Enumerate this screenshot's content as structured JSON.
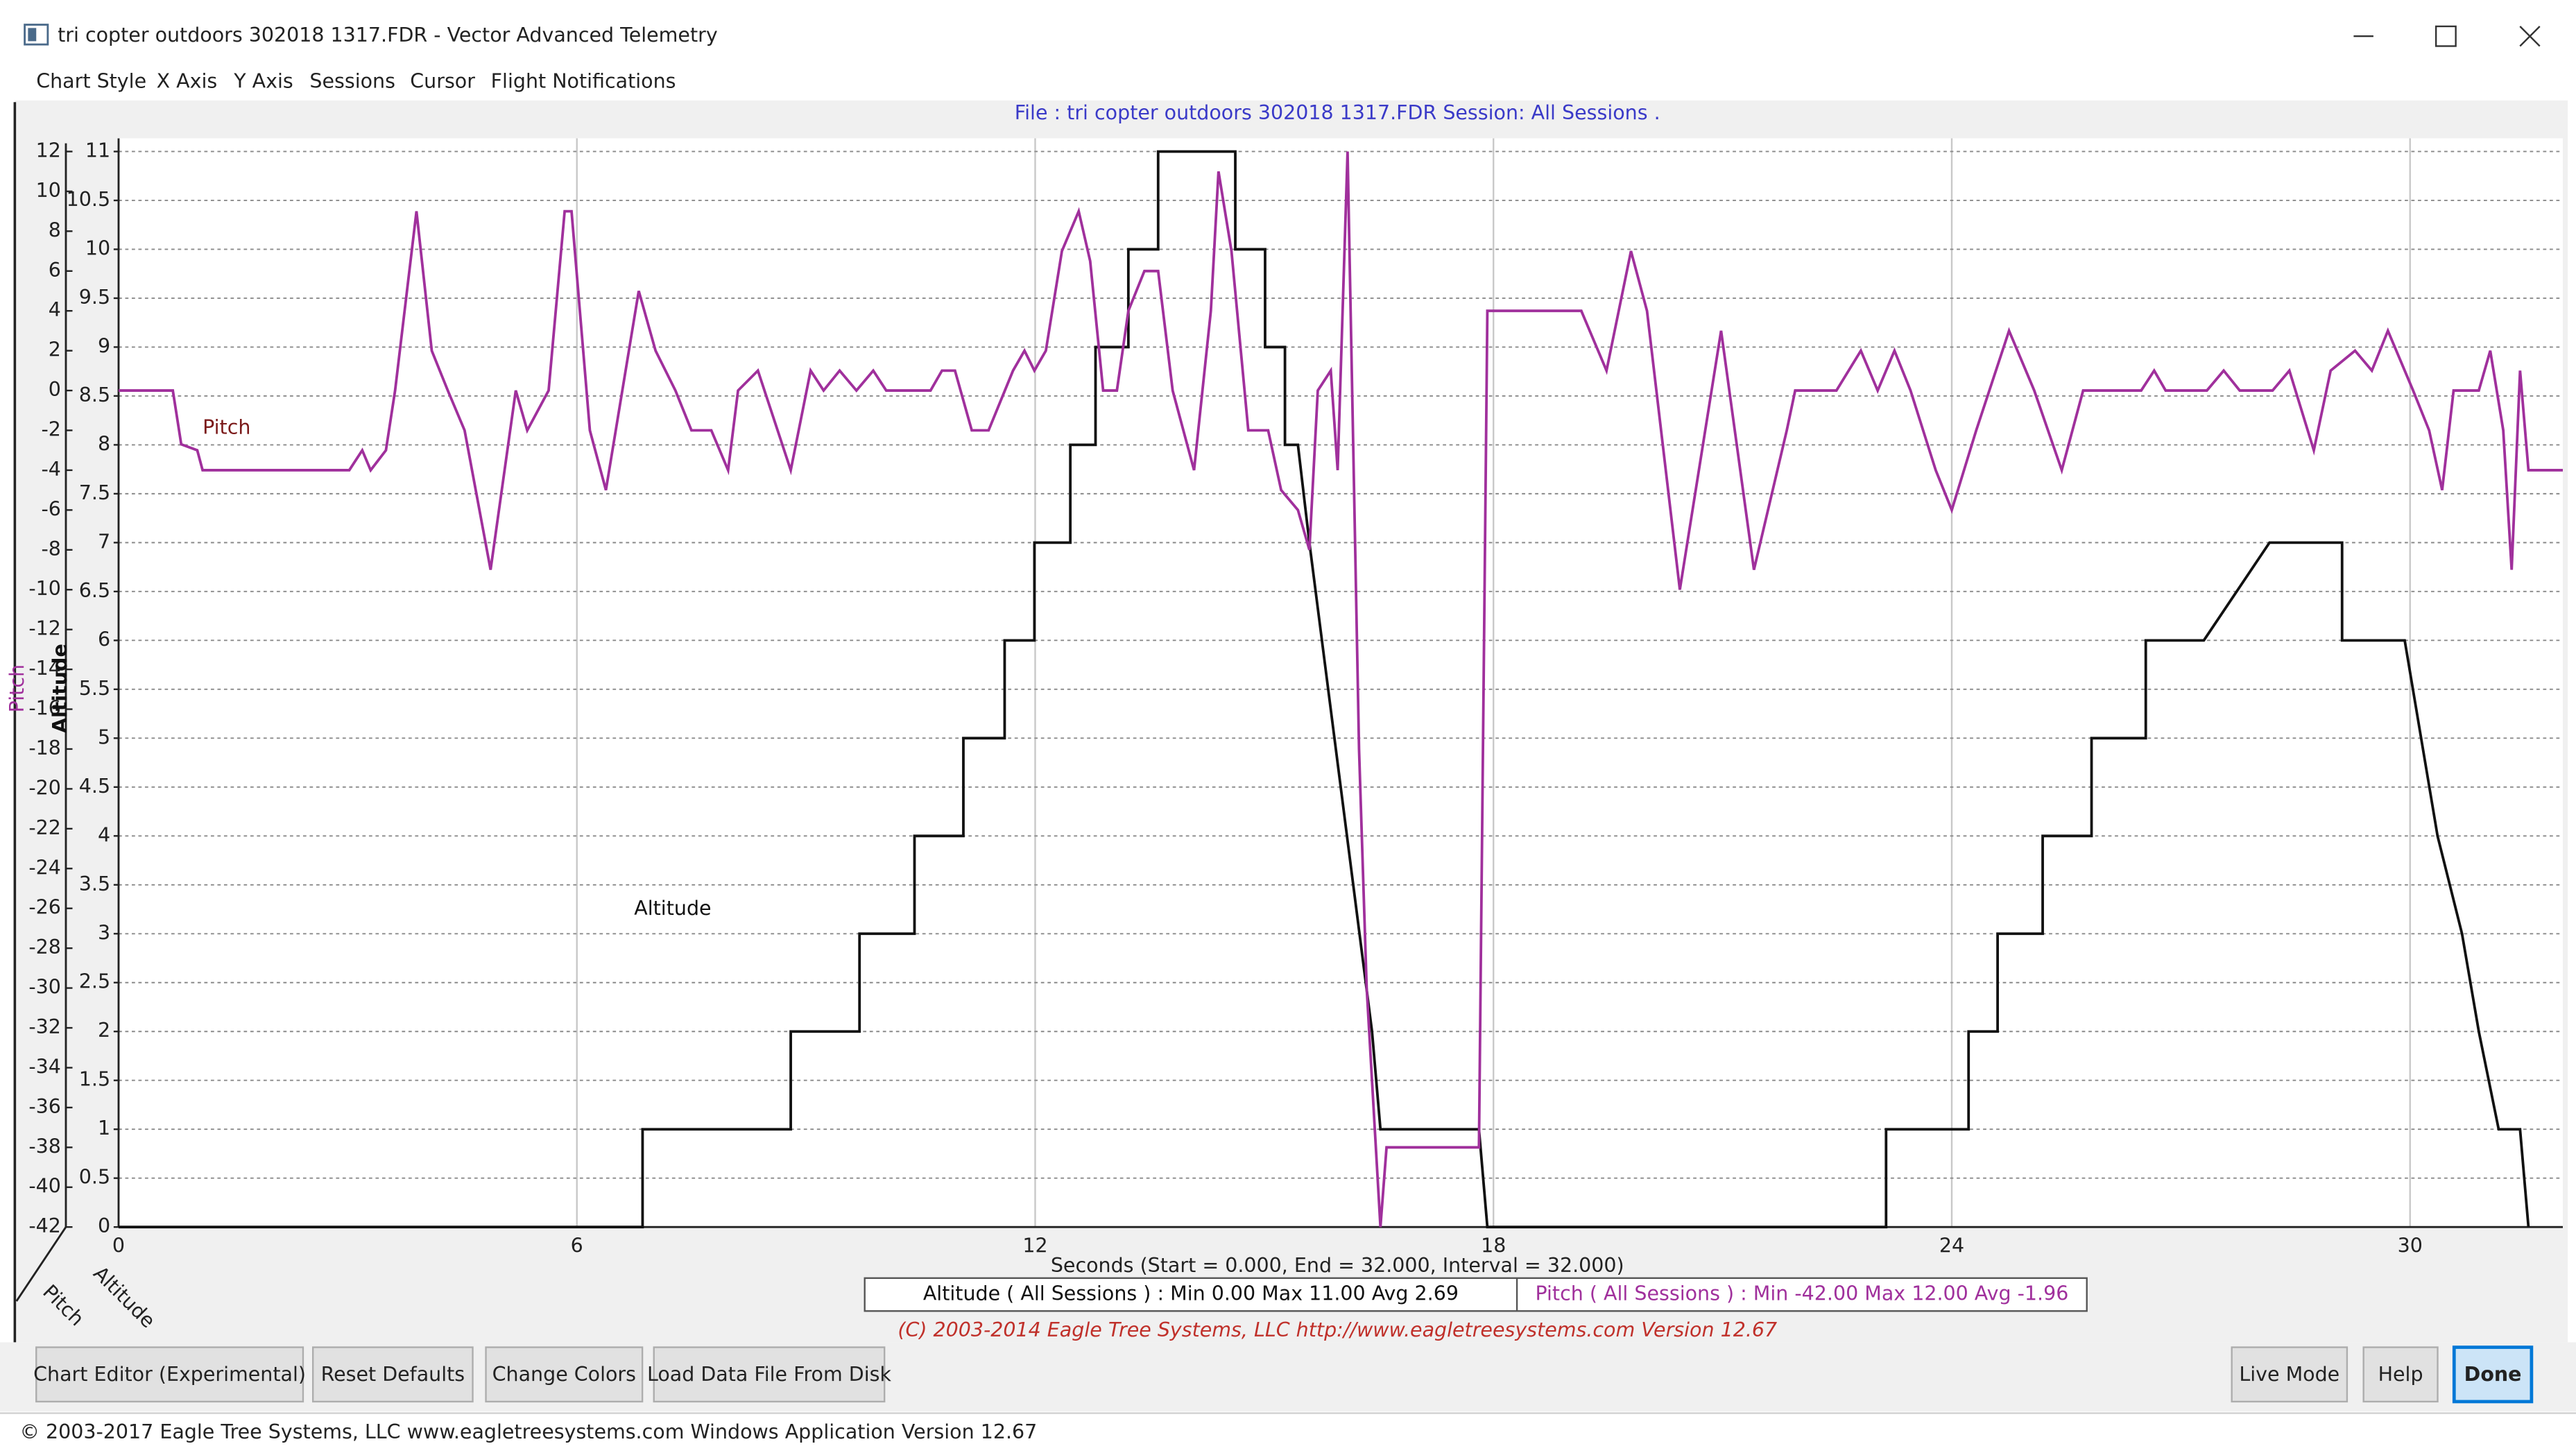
{
  "window": {
    "title": "tri copter outdoors 302018 1317.FDR - Vector Advanced Telemetry"
  },
  "menu": [
    "Chart Style",
    "X Axis",
    "Y Axis",
    "Sessions",
    "Cursor",
    "Flight Notifications"
  ],
  "chart_data": {
    "type": "line",
    "title": "File : tri copter outdoors 302018 1317.FDR   Session: All Sessions .",
    "xlabel": "Seconds (Start = 0.000,  End = 32.000,  Interval =  32.000)",
    "ylabel": "Pitch",
    "y2label": "Altitude",
    "xlim": [
      0,
      32
    ],
    "xticks": [
      0,
      6,
      12,
      18,
      24,
      30
    ],
    "ylim": [
      -42,
      12
    ],
    "yticks": [
      -42,
      -40,
      -38,
      -36,
      -34,
      -32,
      -30,
      -28,
      -26,
      -24,
      -22,
      -20,
      -18,
      -16,
      -14,
      -12,
      -10,
      -8,
      -6,
      -4,
      -2,
      0,
      2,
      4,
      6,
      8,
      10,
      12
    ],
    "y2lim": [
      0,
      11
    ],
    "y2ticks": [
      0,
      0.5,
      1,
      1.5,
      2,
      2.5,
      3,
      3.5,
      4,
      4.5,
      5,
      5.5,
      6,
      6.5,
      7,
      7.5,
      8,
      8.5,
      9,
      9.5,
      10,
      10.5,
      11
    ],
    "grid": true,
    "series": [
      {
        "name": "Altitude",
        "color": "#111111",
        "axis": "y2",
        "x": [
          0,
          6.86,
          6.86,
          8.8,
          8.8,
          9.7,
          9.7,
          10.42,
          10.42,
          11.06,
          11.06,
          11.6,
          11.6,
          11.99,
          11.99,
          12.46,
          12.46,
          12.79,
          12.79,
          13.22,
          13.22,
          13.61,
          13.61,
          14.62,
          14.62,
          15.01,
          15.01,
          15.27,
          15.27,
          15.44,
          15.59,
          16.41,
          16.52,
          17.81,
          17.92,
          23.14,
          23.14,
          24.22,
          24.22,
          24.6,
          24.6,
          25.19,
          25.19,
          25.83,
          25.83,
          26.54,
          26.54,
          27.3,
          28.16,
          29.11,
          29.11,
          29.93,
          30.36,
          30.68,
          30.9,
          31.16,
          31.44,
          31.55
        ],
        "values": [
          0,
          0,
          1,
          1,
          2,
          2,
          3,
          3,
          4,
          4,
          5,
          5,
          6,
          6,
          7,
          7,
          8,
          8,
          9,
          9,
          10,
          10,
          11,
          11,
          10,
          10,
          9,
          9,
          8,
          8,
          7,
          2,
          1,
          1,
          0,
          0,
          1,
          1,
          2,
          2,
          3,
          3,
          4,
          4,
          5,
          5,
          6,
          6,
          7,
          7,
          6,
          6,
          4,
          3,
          2,
          1,
          1,
          0
        ]
      },
      {
        "name": "Pitch",
        "color": "#a0309c",
        "x": [
          0,
          0.71,
          0.82,
          1.03,
          1.1,
          3.02,
          3.19,
          3.3,
          3.5,
          3.62,
          3.9,
          4.1,
          4.31,
          4.53,
          4.87,
          5.2,
          5.35,
          5.63,
          5.84,
          5.93,
          6.17,
          6.38,
          6.81,
          7.03,
          7.29,
          7.5,
          7.76,
          7.98,
          8.11,
          8.37,
          8.8,
          9.06,
          9.23,
          9.44,
          9.66,
          9.88,
          10.05,
          10.63,
          10.78,
          10.95,
          11.17,
          11.39,
          11.71,
          11.86,
          11.99,
          12.14,
          12.35,
          12.57,
          12.72,
          12.89,
          13.07,
          13.22,
          13.43,
          13.61,
          13.8,
          14.08,
          14.3,
          14.4,
          14.57,
          14.79,
          15.05,
          15.22,
          15.44,
          15.59,
          15.7,
          15.87,
          15.96,
          16.09,
          16.24,
          16.34,
          16.52,
          16.6,
          17.81,
          17.92,
          19.15,
          19.48,
          19.8,
          20.01,
          20.44,
          20.98,
          21.41,
          21.84,
          21.95,
          22.49,
          22.81,
          23.03,
          23.25,
          23.46,
          23.79,
          24.0,
          24.32,
          24.75,
          25.08,
          25.44,
          25.72,
          26.48,
          26.65,
          26.8,
          27.34,
          27.56,
          27.77,
          28.2,
          28.42,
          28.74,
          28.96,
          29.28,
          29.5,
          29.71,
          30.04,
          30.25,
          30.42,
          30.57,
          30.9,
          31.05,
          31.22,
          31.33,
          31.44,
          31.55,
          32
        ],
        "values": [
          0,
          0,
          -2.7,
          -3,
          -4,
          -4,
          -3,
          -4,
          -3,
          0,
          9,
          2,
          0,
          -2,
          -9,
          0,
          -2,
          0,
          9,
          9,
          -2,
          -5,
          5,
          2,
          0,
          -2,
          -2,
          -4,
          0,
          1,
          -4,
          1,
          0,
          1,
          0,
          1,
          0,
          0,
          1,
          1,
          -2,
          -2,
          1,
          2,
          1,
          2,
          7,
          9,
          6.5,
          0,
          0,
          4,
          6,
          6,
          0,
          -4,
          4,
          11,
          7,
          -2,
          -2,
          -5,
          -6,
          -8,
          0,
          1,
          -4,
          12,
          -18,
          -30,
          -42,
          -38,
          -38,
          4,
          4,
          1,
          7,
          4,
          -10,
          3,
          -9,
          -2,
          0,
          0,
          2,
          0,
          2,
          0,
          -4,
          -6,
          -2,
          3,
          0,
          -4,
          0,
          0,
          1,
          0,
          0,
          1,
          0,
          0,
          1,
          -3,
          1,
          2,
          1,
          3,
          0,
          -2,
          -5,
          0,
          0,
          2,
          -2,
          -9,
          1,
          -4,
          -4
        ]
      }
    ],
    "stats": [
      "Altitude ( All Sessions ) : Min 0.00    Max 11.00    Avg 2.69",
      "Pitch ( All Sessions ) : Min -42.00    Max 12.00    Avg -1.96"
    ],
    "footnote": "(C) 2003-2014 Eagle Tree Systems, LLC  http://www.eagletreesystems.com  Version 12.67"
  },
  "buttons": [
    "Chart Editor (Experimental)",
    "Reset Defaults",
    "Change Colors",
    "Load Data File From Disk",
    "Live Mode",
    "Help",
    "Done"
  ],
  "status_bar": "© 2003-2017 Eagle Tree Systems, LLC    www.eagletreesystems.com    Windows Application Version 12.67"
}
